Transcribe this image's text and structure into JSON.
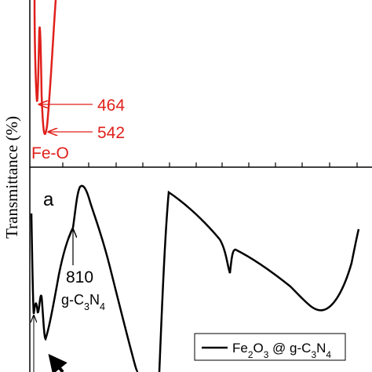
{
  "chart_data": {
    "type": "line",
    "y_label": "Transmittance (%)",
    "panel_label": "a",
    "red_annotations": [
      464,
      542
    ],
    "red_group_label": "Fe-O",
    "black_annotation": 810,
    "black_group_label": [
      "g-C",
      "3",
      "N",
      "4"
    ],
    "legend_label": [
      "Fe",
      "2",
      "O",
      "3",
      " @ g-C",
      "3",
      "N",
      "4"
    ]
  }
}
